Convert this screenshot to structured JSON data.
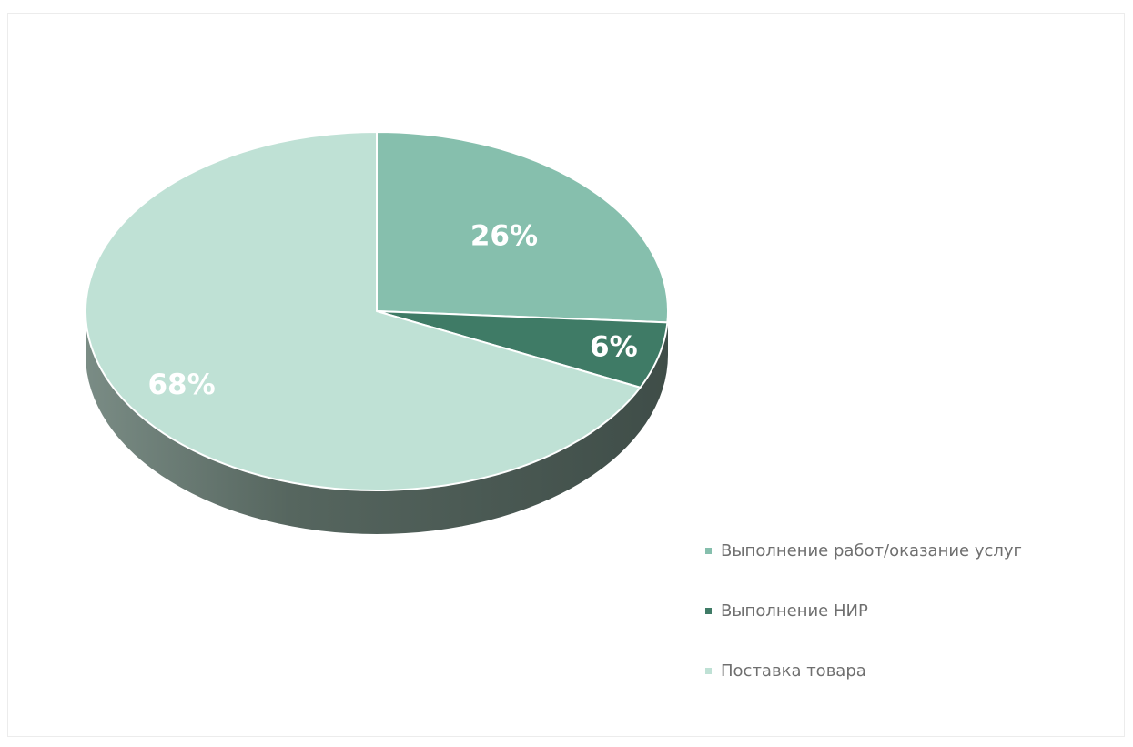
{
  "chart_data": {
    "type": "pie",
    "style": "3d",
    "categories": [
      "Выполнение работ/оказание услуг",
      "Выполнение НИР",
      "Поставка товара"
    ],
    "values": [
      26,
      6,
      68
    ],
    "labels": [
      "26%",
      "6%",
      "68%"
    ],
    "colors": [
      "#86bfad",
      "#3f7b66",
      "#bfe1d5"
    ],
    "side_color": "#5d6f68",
    "label_color": "#ffffff",
    "legend_placement": "bottom-right",
    "title": ""
  }
}
